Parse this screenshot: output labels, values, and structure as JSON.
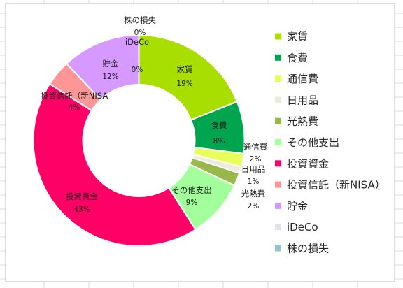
{
  "chart_data": {
    "type": "pie",
    "style": "doughnut",
    "title": "",
    "slices": [
      {
        "name": "家賃",
        "value": 19,
        "label_value": "19%",
        "color": "#a9df00"
      },
      {
        "name": "食費",
        "value": 8,
        "label_value": "8%",
        "color": "#00a550"
      },
      {
        "name": "通信費",
        "value": 2,
        "label_value": "2%",
        "color": "#e8ff5a"
      },
      {
        "name": "日用品",
        "value": 1,
        "label_value": "1%",
        "color": "#ececdc"
      },
      {
        "name": "光熱費",
        "value": 2,
        "label_value": "2%",
        "color": "#98b84a"
      },
      {
        "name": "その他支出",
        "value": 9,
        "label_value": "9%",
        "color": "#a2ff9c"
      },
      {
        "name": "投資資金",
        "value": 43,
        "label_value": "43%",
        "color": "#ff0066"
      },
      {
        "name": "投資信託(新NISA)",
        "value": 4,
        "label_value": "4%",
        "color": "#ff9696"
      },
      {
        "name": "貯金",
        "value": 12,
        "label_value": "12%",
        "color": "#d699ff"
      },
      {
        "name": "iDeCo",
        "value": 0,
        "label_value": "0%",
        "color": "#e4e1ea"
      },
      {
        "name": "株の損失",
        "value": 0,
        "label_value": "0%",
        "color": "#92c4d0"
      }
    ],
    "legend": {
      "position": "right",
      "entries": [
        "家賃",
        "食費",
        "通信費",
        "日用品",
        "光熱費",
        "その他支出",
        "投資資金",
        "投資信託（新NISA）",
        "貯金",
        "iDeCo",
        "株の損失"
      ]
    },
    "data_labels": [
      {
        "series": "家賃",
        "name": "家賃",
        "value": "19%"
      },
      {
        "series": "食費",
        "name": "食費",
        "value": "8%"
      },
      {
        "series": "通信費",
        "name": "通信費",
        "value": "2%"
      },
      {
        "series": "日用品",
        "name": "日用品",
        "value": "1%"
      },
      {
        "series": "光熱費",
        "name": "光熱費",
        "value": "2%"
      },
      {
        "series": "その他支出",
        "name": "その他支出",
        "value": "9%"
      },
      {
        "series": "投資資金",
        "name": "投資資金",
        "value": "43%"
      },
      {
        "series": "投資信託(新NISA)",
        "name": "投資信託（新NISA",
        "value": "4%"
      },
      {
        "series": "貯金",
        "name": "貯金",
        "value": "12%"
      },
      {
        "series": "iDeCo",
        "name": "iDeCo",
        "value": "0%"
      },
      {
        "series": "株の損失",
        "name": "株の損失",
        "value": "0%"
      }
    ]
  }
}
